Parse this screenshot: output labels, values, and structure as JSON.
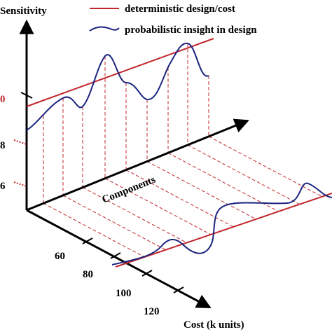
{
  "axes": {
    "vertical": "Sensitivity",
    "depth": "Components",
    "horizontal": "Cost (k units)"
  },
  "legend": [
    "deterministic design/cost",
    "probabilistic insight in design"
  ],
  "sensitivity_labels": [
    "0",
    "8",
    "6"
  ],
  "cost_labels": [
    "60",
    "80",
    "100",
    "120"
  ]
}
